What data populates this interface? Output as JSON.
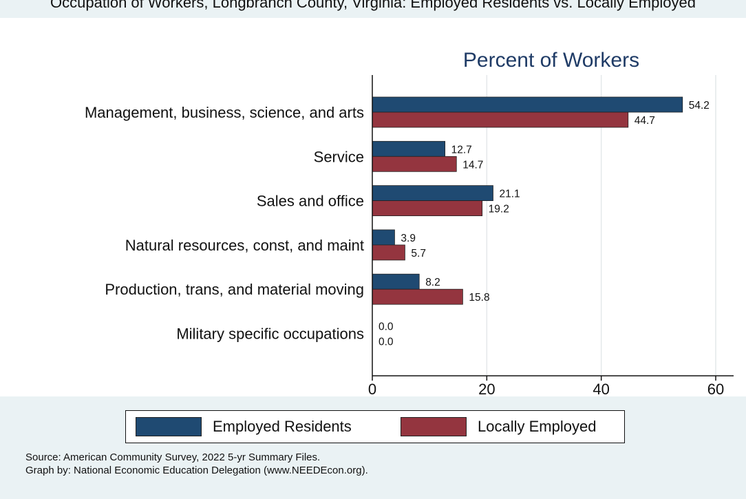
{
  "page_title": "Occupation of Workers, Longbranch County, Virginia: Employed Residents vs. Locally Employed",
  "notes": [
    "Source: American Community Survey, 2022 5-yr Summary Files.",
    "Graph by: National Economic Education Delegation (www.NEEDEcon.org)."
  ],
  "colors": {
    "employed_residents": "#1f4a72",
    "locally_employed": "#94353f",
    "plot_bg": "#ffffff",
    "gridline": "#e4e8ea"
  },
  "chart_data": {
    "type": "bar",
    "orientation": "horizontal",
    "title": "Percent of Workers",
    "categories": [
      "Management, business, science, and arts",
      "Service",
      "Sales and office",
      "Natural resources, const, and maint",
      "Production, trans, and material moving",
      "Military specific occupations"
    ],
    "series": [
      {
        "name": "Employed Residents",
        "values": [
          54.2,
          12.7,
          21.1,
          3.9,
          8.2,
          0.0
        ],
        "labels": [
          "54.2",
          "12.7",
          "21.1",
          "3.9",
          "8.2",
          "0.0"
        ]
      },
      {
        "name": "Locally Employed",
        "values": [
          44.7,
          14.7,
          19.2,
          5.7,
          15.8,
          0.0
        ],
        "labels": [
          "44.7",
          "14.7",
          "19.2",
          "5.7",
          "15.8",
          "0.0"
        ]
      }
    ],
    "xlim": [
      0,
      60
    ],
    "xticks": [
      "0",
      "20",
      "40",
      "60"
    ],
    "grid": true,
    "legend_position": "bottom"
  }
}
